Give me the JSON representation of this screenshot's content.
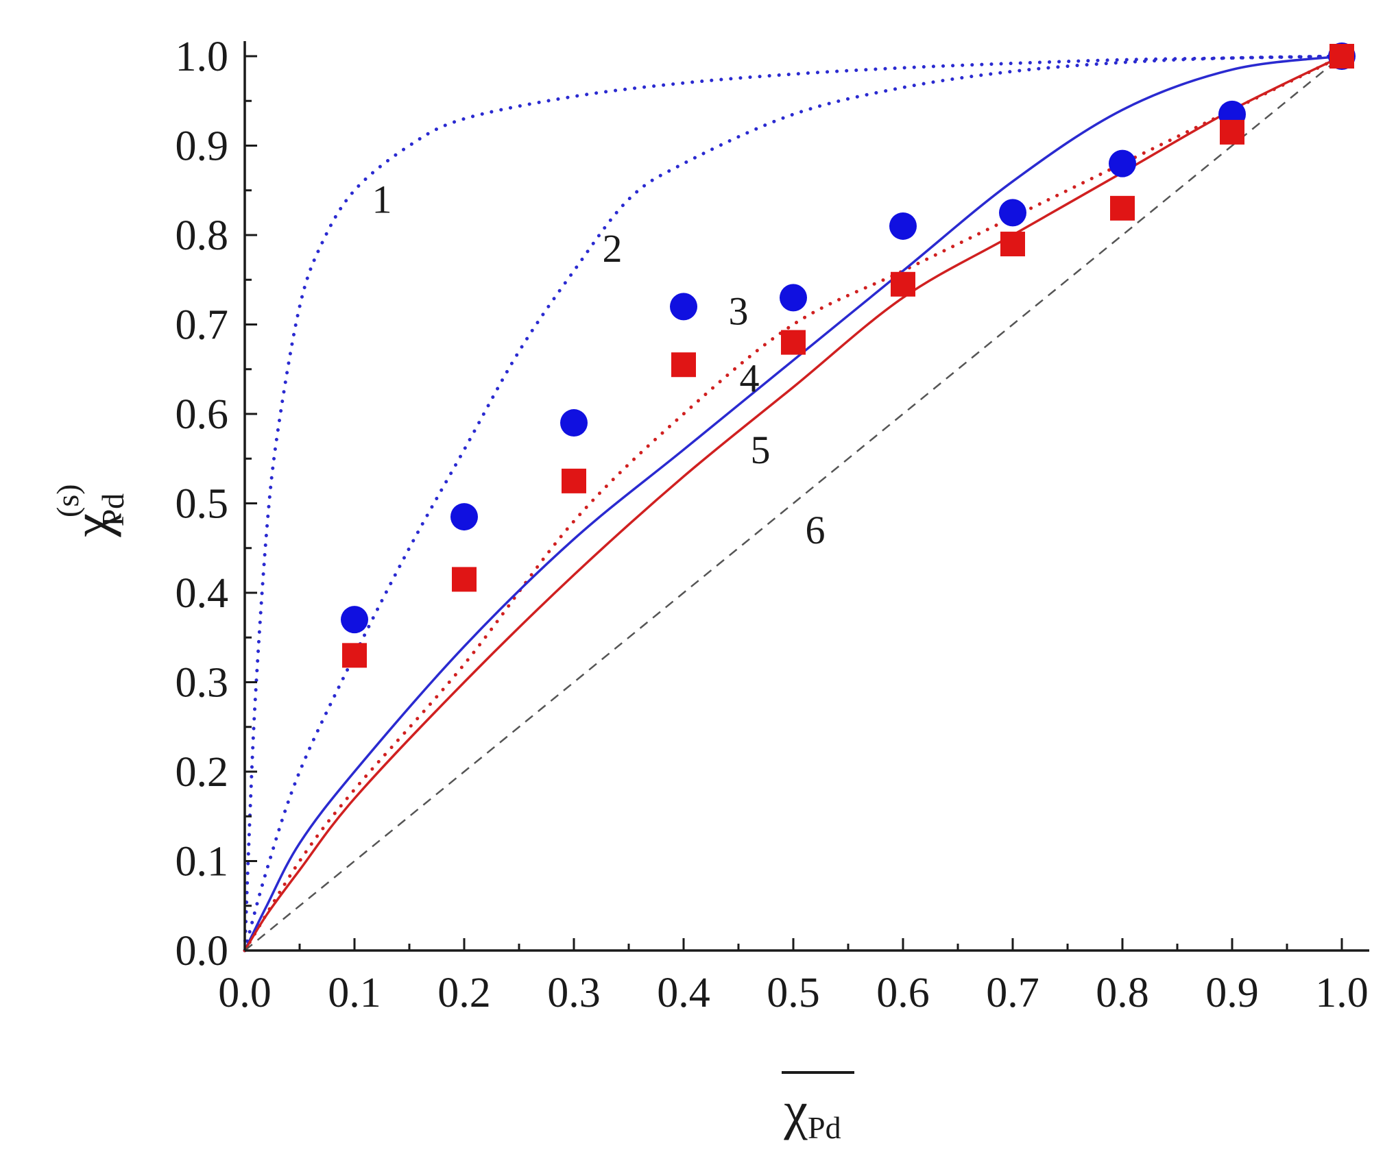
{
  "chart_data": {
    "type": "scatter",
    "title": "",
    "xlabel": "χ",
    "xlabel_subscript": "Pd",
    "xlabel_overline": true,
    "ylabel": "χ",
    "ylabel_superscript": "(s)",
    "ylabel_subscript": "Pd",
    "xlim": [
      0.0,
      1.0
    ],
    "ylim": [
      0.0,
      1.0
    ],
    "x_tick_labels": [
      "0.0",
      "0.1",
      "0.2",
      "0.3",
      "0.4",
      "0.5",
      "0.6",
      "0.7",
      "0.8",
      "0.9",
      "1.0"
    ],
    "y_tick_labels": [
      "0.0",
      "0.1",
      "0.2",
      "0.3",
      "0.4",
      "0.5",
      "0.6",
      "0.7",
      "0.8",
      "0.9",
      "1.0"
    ],
    "grid": false,
    "series": [
      {
        "name": "1",
        "label": "1",
        "style": "dotted",
        "color": "#2a2ad0",
        "x": [
          0.0,
          0.005,
          0.01,
          0.02,
          0.03,
          0.05,
          0.07,
          0.1,
          0.15,
          0.2,
          0.3,
          0.4,
          0.5,
          0.6,
          0.7,
          0.8,
          0.9,
          1.0
        ],
        "y": [
          0.0,
          0.16,
          0.29,
          0.47,
          0.58,
          0.72,
          0.79,
          0.85,
          0.9,
          0.93,
          0.955,
          0.97,
          0.98,
          0.987,
          0.992,
          0.996,
          0.998,
          1.0
        ]
      },
      {
        "name": "2",
        "label": "2",
        "style": "dotted",
        "color": "#2a2ad0",
        "x": [
          0.0,
          0.02,
          0.05,
          0.1,
          0.15,
          0.2,
          0.25,
          0.3,
          0.35,
          0.4,
          0.5,
          0.6,
          0.7,
          0.8,
          0.9,
          1.0
        ],
        "y": [
          0.0,
          0.09,
          0.2,
          0.33,
          0.45,
          0.56,
          0.67,
          0.76,
          0.84,
          0.88,
          0.935,
          0.965,
          0.983,
          0.993,
          0.998,
          1.0
        ]
      },
      {
        "name": "3",
        "label": "3",
        "style": "dotted",
        "color": "#d02020",
        "x": [
          0.0,
          0.05,
          0.1,
          0.2,
          0.3,
          0.4,
          0.5,
          0.6,
          0.7,
          0.8,
          0.9,
          1.0
        ],
        "y": [
          0.0,
          0.1,
          0.18,
          0.32,
          0.48,
          0.6,
          0.7,
          0.76,
          0.82,
          0.88,
          0.94,
          1.0
        ]
      },
      {
        "name": "4",
        "label": "4",
        "style": "solid",
        "color": "#2a2ad0",
        "x": [
          0.0,
          0.02,
          0.05,
          0.1,
          0.2,
          0.3,
          0.4,
          0.5,
          0.6,
          0.7,
          0.8,
          0.9,
          1.0
        ],
        "y": [
          0.0,
          0.05,
          0.12,
          0.2,
          0.34,
          0.46,
          0.56,
          0.66,
          0.76,
          0.86,
          0.94,
          0.985,
          1.0
        ]
      },
      {
        "name": "5",
        "label": "5",
        "style": "solid",
        "color": "#d02020",
        "x": [
          0.0,
          0.02,
          0.05,
          0.1,
          0.2,
          0.3,
          0.4,
          0.5,
          0.6,
          0.7,
          0.8,
          0.9,
          1.0
        ],
        "y": [
          0.0,
          0.04,
          0.09,
          0.17,
          0.3,
          0.42,
          0.53,
          0.63,
          0.73,
          0.8,
          0.87,
          0.94,
          1.0
        ]
      },
      {
        "name": "6",
        "label": "6",
        "style": "dashed",
        "color": "#555555",
        "x": [
          0.0,
          1.0
        ],
        "y": [
          0.0,
          1.0
        ]
      },
      {
        "name": "circles",
        "marker": "circle",
        "color": "#1010e0",
        "x": [
          0.1,
          0.2,
          0.3,
          0.4,
          0.5,
          0.6,
          0.7,
          0.8,
          0.9,
          1.0
        ],
        "y": [
          0.37,
          0.485,
          0.59,
          0.72,
          0.73,
          0.81,
          0.825,
          0.88,
          0.935,
          1.0
        ]
      },
      {
        "name": "squares",
        "marker": "square",
        "color": "#e01515",
        "x": [
          0.1,
          0.2,
          0.3,
          0.4,
          0.5,
          0.6,
          0.7,
          0.8,
          0.9,
          1.0
        ],
        "y": [
          0.33,
          0.415,
          0.525,
          0.655,
          0.68,
          0.745,
          0.79,
          0.83,
          0.915,
          1.0
        ]
      }
    ],
    "annotations": [
      {
        "text": "1",
        "x": 0.125,
        "y": 0.825
      },
      {
        "text": "2",
        "x": 0.335,
        "y": 0.77
      },
      {
        "text": "3",
        "x": 0.45,
        "y": 0.7
      },
      {
        "text": "4",
        "x": 0.46,
        "y": 0.625
      },
      {
        "text": "5",
        "x": 0.47,
        "y": 0.545
      },
      {
        "text": "6",
        "x": 0.52,
        "y": 0.455
      }
    ]
  }
}
